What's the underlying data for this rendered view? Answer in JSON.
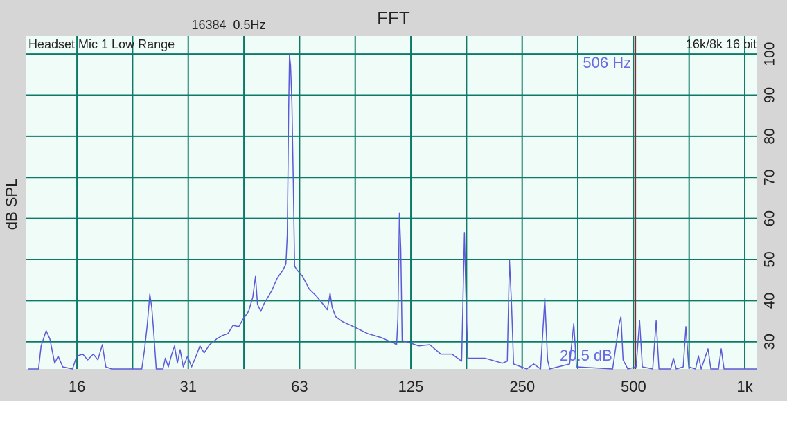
{
  "chart_data": {
    "type": "line",
    "title": "FFT",
    "subtitle": "16384  0.5Hz",
    "source_label": "Headset Mic 1 Low Range",
    "format_label": "16k/8k 16 bit",
    "y_label": "dB SPL",
    "readout": "20.5 dB",
    "cursor": {
      "value": 506,
      "label": "506 Hz"
    },
    "cursor_color": "#8b2a2a",
    "log_x": true,
    "grid": true,
    "color": "#5a5ad8",
    "xlim": [
      11.4,
      1076
    ],
    "ylim": [
      23.4,
      104.4
    ],
    "xticks": [
      {
        "value": 15.625,
        "label": "16"
      },
      {
        "value": 31.25,
        "label": "31"
      },
      {
        "value": 62.5,
        "label": "63"
      },
      125,
      250,
      500,
      {
        "value": 1000,
        "label": "1k"
      }
    ],
    "yticks": [
      30,
      40,
      50,
      60,
      70,
      80,
      90,
      100
    ],
    "x": [
      11.55,
      12.3,
      12.5,
      12.9,
      13.2,
      13.6,
      13.9,
      14.3,
      15.2,
      15.6,
      16.2,
      16.7,
      17.3,
      17.8,
      18.3,
      18.7,
      19.4,
      23.4,
      23.8,
      24.2,
      24.6,
      24.9,
      25.2,
      25.6,
      26.7,
      27.1,
      27.6,
      28.2,
      28.7,
      29.2,
      29.7,
      30.3,
      31.1,
      31.9,
      32.8,
      33.6,
      34.5,
      35.7,
      37.3,
      38.6,
      40.0,
      41.3,
      42.8,
      43.9,
      45.5,
      46.7,
      47.5,
      48.1,
      49.1,
      50.0,
      51.3,
      52.6,
      54.4,
      56.4,
      57.4,
      57.9,
      58.4,
      58.7,
      59.1,
      59.6,
      60.1,
      60.6,
      61.5,
      63.7,
      66.4,
      69.4,
      72.4,
      74.3,
      75.6,
      76.6,
      78.3,
      81.7,
      87.4,
      95.5,
      104.1,
      111.5,
      114.4,
      115.3,
      116.4,
      117.4,
      118.4,
      123.6,
      131.3,
      140.6,
      150.6,
      161.5,
      171.5,
      174.5,
      176.0,
      178.3,
      198.5,
      221.2,
      227.9,
      231.0,
      234.0,
      237.0,
      257.3,
      268.6,
      280.4,
      287.9,
      292.9,
      296.6,
      336.0,
      344.8,
      350.7,
      439.2,
      456.6,
      462.6,
      468.7,
      482.8,
      508.4,
      519.4,
      528.5,
      563.7,
      575.9,
      586.0,
      630.6,
      641.3,
      652.6,
      681.6,
      693.1,
      705.2,
      736.2,
      749.2,
      762.2,
      795.5,
      809.7,
      848.9,
      863.6,
      878.8,
      1076
    ],
    "values": [
      23.4,
      23.4,
      29.0,
      32.7,
      30.7,
      24.8,
      26.5,
      23.9,
      23.4,
      26.5,
      27.0,
      25.6,
      27.0,
      25.6,
      29.3,
      23.9,
      23.4,
      23.4,
      28.1,
      34.0,
      41.6,
      38.3,
      32.4,
      23.4,
      23.4,
      26.0,
      23.9,
      27.0,
      29.0,
      24.8,
      28.1,
      23.9,
      26.5,
      23.9,
      26.5,
      29.0,
      27.3,
      29.3,
      30.7,
      31.5,
      32.0,
      34.0,
      33.7,
      35.4,
      37.4,
      40.8,
      45.9,
      39.1,
      37.4,
      39.1,
      40.8,
      42.5,
      45.5,
      47.5,
      48.9,
      56.0,
      86.3,
      99.8,
      97.3,
      88.0,
      69.5,
      48.4,
      47.5,
      45.9,
      42.8,
      41.1,
      39.1,
      37.8,
      41.8,
      38.3,
      36.1,
      34.9,
      33.7,
      32.0,
      31.0,
      29.8,
      29.3,
      35.7,
      61.4,
      52.6,
      30.3,
      29.8,
      29.0,
      29.3,
      27.0,
      27.0,
      25.3,
      56.6,
      42.5,
      26.0,
      26.0,
      24.8,
      25.3,
      49.9,
      39.1,
      24.6,
      23.4,
      24.6,
      23.4,
      40.5,
      25.6,
      23.4,
      24.6,
      34.4,
      23.9,
      23.4,
      34.0,
      36.1,
      25.6,
      23.4,
      23.9,
      35.2,
      23.9,
      23.4,
      35.1,
      23.4,
      23.4,
      26.0,
      23.4,
      23.9,
      33.7,
      23.9,
      23.4,
      26.6,
      23.4,
      28.3,
      23.4,
      23.4,
      28.3,
      23.4,
      23.4
    ]
  }
}
